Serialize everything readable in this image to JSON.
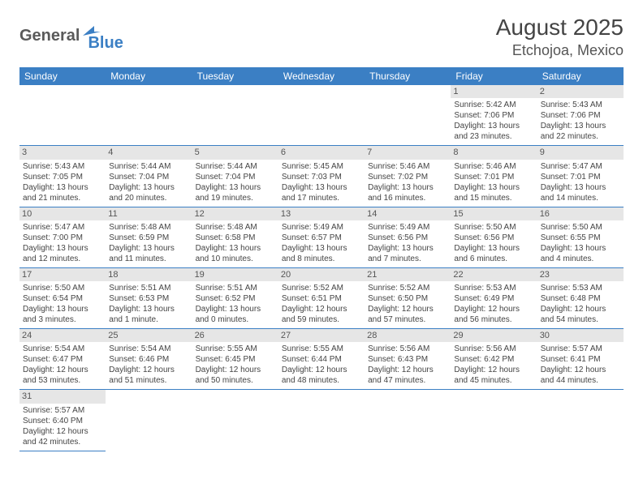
{
  "logo": {
    "general": "General",
    "blue": "Blue"
  },
  "title": "August 2025",
  "location": "Etchojoa, Mexico",
  "colors": {
    "header_bg": "#3b7fc4",
    "header_text": "#ffffff",
    "daynum_bg": "#e6e6e6",
    "border": "#3b7fc4",
    "body_text": "#444444"
  },
  "weekdays": [
    "Sunday",
    "Monday",
    "Tuesday",
    "Wednesday",
    "Thursday",
    "Friday",
    "Saturday"
  ],
  "weeks": [
    [
      null,
      null,
      null,
      null,
      null,
      {
        "n": "1",
        "sr": "Sunrise: 5:42 AM",
        "ss": "Sunset: 7:06 PM",
        "d1": "Daylight: 13 hours",
        "d2": "and 23 minutes."
      },
      {
        "n": "2",
        "sr": "Sunrise: 5:43 AM",
        "ss": "Sunset: 7:06 PM",
        "d1": "Daylight: 13 hours",
        "d2": "and 22 minutes."
      }
    ],
    [
      {
        "n": "3",
        "sr": "Sunrise: 5:43 AM",
        "ss": "Sunset: 7:05 PM",
        "d1": "Daylight: 13 hours",
        "d2": "and 21 minutes."
      },
      {
        "n": "4",
        "sr": "Sunrise: 5:44 AM",
        "ss": "Sunset: 7:04 PM",
        "d1": "Daylight: 13 hours",
        "d2": "and 20 minutes."
      },
      {
        "n": "5",
        "sr": "Sunrise: 5:44 AM",
        "ss": "Sunset: 7:04 PM",
        "d1": "Daylight: 13 hours",
        "d2": "and 19 minutes."
      },
      {
        "n": "6",
        "sr": "Sunrise: 5:45 AM",
        "ss": "Sunset: 7:03 PM",
        "d1": "Daylight: 13 hours",
        "d2": "and 17 minutes."
      },
      {
        "n": "7",
        "sr": "Sunrise: 5:46 AM",
        "ss": "Sunset: 7:02 PM",
        "d1": "Daylight: 13 hours",
        "d2": "and 16 minutes."
      },
      {
        "n": "8",
        "sr": "Sunrise: 5:46 AM",
        "ss": "Sunset: 7:01 PM",
        "d1": "Daylight: 13 hours",
        "d2": "and 15 minutes."
      },
      {
        "n": "9",
        "sr": "Sunrise: 5:47 AM",
        "ss": "Sunset: 7:01 PM",
        "d1": "Daylight: 13 hours",
        "d2": "and 14 minutes."
      }
    ],
    [
      {
        "n": "10",
        "sr": "Sunrise: 5:47 AM",
        "ss": "Sunset: 7:00 PM",
        "d1": "Daylight: 13 hours",
        "d2": "and 12 minutes."
      },
      {
        "n": "11",
        "sr": "Sunrise: 5:48 AM",
        "ss": "Sunset: 6:59 PM",
        "d1": "Daylight: 13 hours",
        "d2": "and 11 minutes."
      },
      {
        "n": "12",
        "sr": "Sunrise: 5:48 AM",
        "ss": "Sunset: 6:58 PM",
        "d1": "Daylight: 13 hours",
        "d2": "and 10 minutes."
      },
      {
        "n": "13",
        "sr": "Sunrise: 5:49 AM",
        "ss": "Sunset: 6:57 PM",
        "d1": "Daylight: 13 hours",
        "d2": "and 8 minutes."
      },
      {
        "n": "14",
        "sr": "Sunrise: 5:49 AM",
        "ss": "Sunset: 6:56 PM",
        "d1": "Daylight: 13 hours",
        "d2": "and 7 minutes."
      },
      {
        "n": "15",
        "sr": "Sunrise: 5:50 AM",
        "ss": "Sunset: 6:56 PM",
        "d1": "Daylight: 13 hours",
        "d2": "and 6 minutes."
      },
      {
        "n": "16",
        "sr": "Sunrise: 5:50 AM",
        "ss": "Sunset: 6:55 PM",
        "d1": "Daylight: 13 hours",
        "d2": "and 4 minutes."
      }
    ],
    [
      {
        "n": "17",
        "sr": "Sunrise: 5:50 AM",
        "ss": "Sunset: 6:54 PM",
        "d1": "Daylight: 13 hours",
        "d2": "and 3 minutes."
      },
      {
        "n": "18",
        "sr": "Sunrise: 5:51 AM",
        "ss": "Sunset: 6:53 PM",
        "d1": "Daylight: 13 hours",
        "d2": "and 1 minute."
      },
      {
        "n": "19",
        "sr": "Sunrise: 5:51 AM",
        "ss": "Sunset: 6:52 PM",
        "d1": "Daylight: 13 hours",
        "d2": "and 0 minutes."
      },
      {
        "n": "20",
        "sr": "Sunrise: 5:52 AM",
        "ss": "Sunset: 6:51 PM",
        "d1": "Daylight: 12 hours",
        "d2": "and 59 minutes."
      },
      {
        "n": "21",
        "sr": "Sunrise: 5:52 AM",
        "ss": "Sunset: 6:50 PM",
        "d1": "Daylight: 12 hours",
        "d2": "and 57 minutes."
      },
      {
        "n": "22",
        "sr": "Sunrise: 5:53 AM",
        "ss": "Sunset: 6:49 PM",
        "d1": "Daylight: 12 hours",
        "d2": "and 56 minutes."
      },
      {
        "n": "23",
        "sr": "Sunrise: 5:53 AM",
        "ss": "Sunset: 6:48 PM",
        "d1": "Daylight: 12 hours",
        "d2": "and 54 minutes."
      }
    ],
    [
      {
        "n": "24",
        "sr": "Sunrise: 5:54 AM",
        "ss": "Sunset: 6:47 PM",
        "d1": "Daylight: 12 hours",
        "d2": "and 53 minutes."
      },
      {
        "n": "25",
        "sr": "Sunrise: 5:54 AM",
        "ss": "Sunset: 6:46 PM",
        "d1": "Daylight: 12 hours",
        "d2": "and 51 minutes."
      },
      {
        "n": "26",
        "sr": "Sunrise: 5:55 AM",
        "ss": "Sunset: 6:45 PM",
        "d1": "Daylight: 12 hours",
        "d2": "and 50 minutes."
      },
      {
        "n": "27",
        "sr": "Sunrise: 5:55 AM",
        "ss": "Sunset: 6:44 PM",
        "d1": "Daylight: 12 hours",
        "d2": "and 48 minutes."
      },
      {
        "n": "28",
        "sr": "Sunrise: 5:56 AM",
        "ss": "Sunset: 6:43 PM",
        "d1": "Daylight: 12 hours",
        "d2": "and 47 minutes."
      },
      {
        "n": "29",
        "sr": "Sunrise: 5:56 AM",
        "ss": "Sunset: 6:42 PM",
        "d1": "Daylight: 12 hours",
        "d2": "and 45 minutes."
      },
      {
        "n": "30",
        "sr": "Sunrise: 5:57 AM",
        "ss": "Sunset: 6:41 PM",
        "d1": "Daylight: 12 hours",
        "d2": "and 44 minutes."
      }
    ],
    [
      {
        "n": "31",
        "sr": "Sunrise: 5:57 AM",
        "ss": "Sunset: 6:40 PM",
        "d1": "Daylight: 12 hours",
        "d2": "and 42 minutes."
      },
      null,
      null,
      null,
      null,
      null,
      null
    ]
  ]
}
